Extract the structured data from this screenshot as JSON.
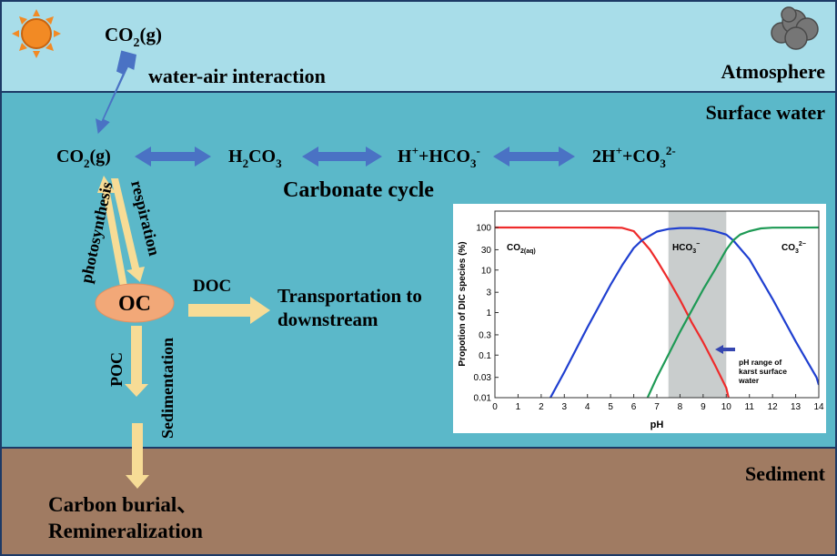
{
  "zones": {
    "atmosphere": "Atmosphere",
    "surface_water": "Surface water",
    "sediment": "Sediment"
  },
  "icons": {
    "sun": "sun-icon",
    "cloud": "cloud-icon"
  },
  "labels": {
    "co2_air": "CO",
    "co2_air_sub": "2",
    "co2_air_tail": "(g)",
    "water_air": "water-air interaction",
    "co2_water": "CO",
    "co2_water_sub": "2",
    "co2_water_tail": "(g)",
    "h2co3_a": "H",
    "h2co3_sub": "2",
    "h2co3_b": "CO",
    "h2co3_sub2": "3",
    "hco3_a": "H",
    "hco3_sup": "+",
    "hco3_b": "+HCO",
    "hco3_sub": "3",
    "hco3_sup2": "-",
    "co3_a": "2H",
    "co3_sup": "+",
    "co3_b": "+CO",
    "co3_sub": "3",
    "co3_sup2": "2-",
    "carbonate_cycle": "Carbonate cycle",
    "photosynthesis": "photosynthesis",
    "respiration": "respiration",
    "oc": "OC",
    "doc": "DOC",
    "transport_1": "Transportation to",
    "transport_2": "downstream",
    "poc": "POC",
    "sedimentation": "Sedimentation",
    "burial_1": "Carbon burial、",
    "burial_2": "Remineralization"
  },
  "colors": {
    "atmosphere": "#a8dde9",
    "surface_water": "#5bb8c9",
    "sediment": "#a07b62",
    "border": "#1d3a66",
    "blue_arrow": "#4a72c4",
    "yellow_arrow": "#f7dc96",
    "oc_fill": "#f2a878",
    "co2_line": "#ee2b2b",
    "hco3_line": "#1f3fd0",
    "co3_line": "#1e9a55",
    "ph_band": "#c9cdcd"
  },
  "chart_data": {
    "type": "line",
    "xlabel": "pH",
    "ylabel": "Propotion of DIC species (%)",
    "x_ticks": [
      "0",
      "1",
      "2",
      "3",
      "4",
      "5",
      "6",
      "7",
      "8",
      "9",
      "10",
      "11",
      "12",
      "13",
      "14"
    ],
    "y_ticks": [
      "100",
      "30",
      "10",
      "3",
      "1",
      "0.3",
      "0.1",
      "0.03",
      "0.01"
    ],
    "y_scale": "log",
    "xlim": [
      0,
      14
    ],
    "ylim": [
      0.01,
      100
    ],
    "band": {
      "from": 7.5,
      "to": 10,
      "label_1": "pH range of",
      "label_2": "karst surface",
      "label_3": "water"
    },
    "series": [
      {
        "name": "CO",
        "sub": "2(aq)",
        "color": "#ee2b2b",
        "points": [
          [
            0,
            100
          ],
          [
            5,
            99.5
          ],
          [
            5.5,
            98
          ],
          [
            6,
            82
          ],
          [
            6.35,
            50
          ],
          [
            6.7,
            30
          ],
          [
            7,
            17
          ],
          [
            7.5,
            6
          ],
          [
            8,
            2
          ],
          [
            8.5,
            0.6
          ],
          [
            9,
            0.2
          ],
          [
            9.5,
            0.06
          ],
          [
            10,
            0.017
          ],
          [
            10.1,
            0.01
          ]
        ]
      },
      {
        "name": "HCO",
        "sub": "3",
        "sup": "−",
        "color": "#1f3fd0",
        "points": [
          [
            2.4,
            0.01
          ],
          [
            3,
            0.04
          ],
          [
            4,
            0.45
          ],
          [
            5,
            4.5
          ],
          [
            5.5,
            13
          ],
          [
            6,
            33
          ],
          [
            6.35,
            50
          ],
          [
            7,
            80
          ],
          [
            7.5,
            92
          ],
          [
            8,
            97
          ],
          [
            8.5,
            97
          ],
          [
            9,
            93
          ],
          [
            9.5,
            82
          ],
          [
            10,
            68
          ],
          [
            10.3,
            50
          ],
          [
            11,
            18
          ],
          [
            12,
            2.1
          ],
          [
            13,
            0.21
          ],
          [
            13.9,
            0.03
          ],
          [
            14,
            0.02
          ]
        ]
      },
      {
        "name": "CO",
        "sub": "3",
        "sup": "2−",
        "color": "#1e9a55",
        "points": [
          [
            6.6,
            0.01
          ],
          [
            7,
            0.03
          ],
          [
            8,
            0.35
          ],
          [
            9,
            3.5
          ],
          [
            9.5,
            10
          ],
          [
            10,
            30
          ],
          [
            10.3,
            50
          ],
          [
            10.6,
            68
          ],
          [
            11,
            82
          ],
          [
            11.5,
            95
          ],
          [
            12,
            99
          ],
          [
            14,
            100
          ]
        ]
      }
    ]
  }
}
